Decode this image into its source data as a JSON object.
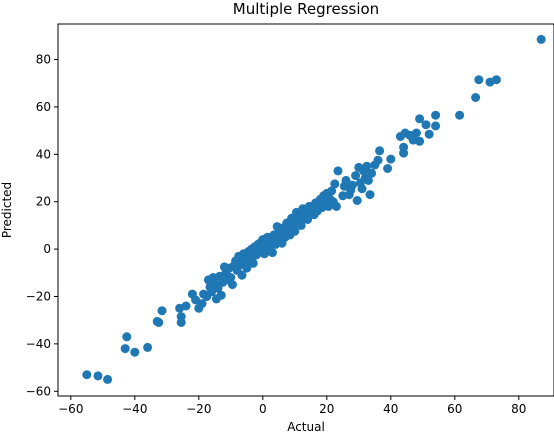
{
  "chart_data": {
    "type": "scatter",
    "title": "Multiple Regression",
    "xlabel": "Actual",
    "ylabel": "Predicted",
    "xlim": [
      -64,
      91
    ],
    "ylim": [
      -62,
      95
    ],
    "xticks": [
      -60,
      -40,
      -20,
      0,
      20,
      40,
      60,
      80
    ],
    "yticks": [
      -60,
      -40,
      -20,
      0,
      20,
      40,
      60,
      80
    ],
    "grid": false,
    "marker_color": "#1f77b4",
    "points": [
      [
        -55,
        -53
      ],
      [
        -51.5,
        -53.5
      ],
      [
        -48.5,
        -55
      ],
      [
        -43,
        -42
      ],
      [
        -42.5,
        -37
      ],
      [
        -40,
        -43.5
      ],
      [
        -36,
        -41.5
      ],
      [
        -33,
        -30.5
      ],
      [
        -32.5,
        -31
      ],
      [
        -31.5,
        -26
      ],
      [
        -26,
        -25
      ],
      [
        -25.5,
        -31
      ],
      [
        -25.5,
        -28.5
      ],
      [
        -24,
        -24
      ],
      [
        -22,
        -19
      ],
      [
        -21,
        -21.5
      ],
      [
        -20,
        -25
      ],
      [
        -19,
        -23
      ],
      [
        -18.5,
        -19
      ],
      [
        -17.5,
        -20
      ],
      [
        -17,
        -13
      ],
      [
        -16.5,
        -16
      ],
      [
        -16,
        -18
      ],
      [
        -15.5,
        -12
      ],
      [
        -15,
        -14.5
      ],
      [
        -14.5,
        -21
      ],
      [
        -14,
        -16.5
      ],
      [
        -13.5,
        -11.5
      ],
      [
        -13,
        -19.5
      ],
      [
        -12.5,
        -14
      ],
      [
        -12,
        -7.5
      ],
      [
        -11.5,
        -10
      ],
      [
        -11,
        -13
      ],
      [
        -10.5,
        -8
      ],
      [
        -10,
        -12
      ],
      [
        -9.5,
        -15
      ],
      [
        -9,
        -7
      ],
      [
        -8.5,
        -5
      ],
      [
        -8,
        -9
      ],
      [
        -7.5,
        -3
      ],
      [
        -7,
        -6.5
      ],
      [
        -6.5,
        -11
      ],
      [
        -6,
        -2
      ],
      [
        -5.5,
        -5.5
      ],
      [
        -5,
        -8
      ],
      [
        -4.5,
        -1
      ],
      [
        -4,
        -3.5
      ],
      [
        -3.5,
        0
      ],
      [
        -3,
        -6
      ],
      [
        -2.5,
        1
      ],
      [
        -2,
        -2.5
      ],
      [
        -1.5,
        2
      ],
      [
        -1,
        -1
      ],
      [
        -0.5,
        3
      ],
      [
        0,
        0
      ],
      [
        0,
        4
      ],
      [
        0.5,
        -2
      ],
      [
        1,
        2.5
      ],
      [
        1.5,
        5
      ],
      [
        2,
        1
      ],
      [
        2.5,
        3
      ],
      [
        3,
        -1.5
      ],
      [
        3.5,
        6
      ],
      [
        4,
        2
      ],
      [
        4.5,
        9.5
      ],
      [
        5,
        4.5
      ],
      [
        5.5,
        7
      ],
      [
        6,
        2.5
      ],
      [
        6.5,
        9
      ],
      [
        7,
        5
      ],
      [
        7.5,
        11
      ],
      [
        8,
        8
      ],
      [
        8.5,
        6
      ],
      [
        9,
        13
      ],
      [
        9.5,
        10
      ],
      [
        10,
        7.5
      ],
      [
        10.5,
        15.5
      ],
      [
        11,
        12
      ],
      [
        11.5,
        14
      ],
      [
        12,
        10
      ],
      [
        12.5,
        17
      ],
      [
        13,
        13
      ],
      [
        13.5,
        16
      ],
      [
        14,
        12.5
      ],
      [
        14.5,
        18
      ],
      [
        15,
        15
      ],
      [
        15.5,
        17
      ],
      [
        16,
        14.5
      ],
      [
        16.5,
        19.5
      ],
      [
        17,
        16
      ],
      [
        17.5,
        18.5
      ],
      [
        18,
        21
      ],
      [
        18.5,
        17.5
      ],
      [
        19,
        22.5
      ],
      [
        19.5,
        20
      ],
      [
        20,
        23.5
      ],
      [
        20.5,
        18
      ],
      [
        21,
        21
      ],
      [
        21.5,
        24.5
      ],
      [
        22,
        20
      ],
      [
        22.5,
        27.5
      ],
      [
        23,
        18
      ],
      [
        23.5,
        33
      ],
      [
        25,
        22.5
      ],
      [
        25.5,
        26.5
      ],
      [
        26,
        29
      ],
      [
        27,
        23
      ],
      [
        27.5,
        25
      ],
      [
        28,
        27
      ],
      [
        29,
        31
      ],
      [
        29.5,
        20.5
      ],
      [
        30,
        34.5
      ],
      [
        30.5,
        28
      ],
      [
        31,
        25.5
      ],
      [
        31.5,
        33
      ],
      [
        32,
        30
      ],
      [
        32.5,
        35
      ],
      [
        33,
        29
      ],
      [
        33.5,
        23
      ],
      [
        34,
        32
      ],
      [
        35,
        35.5
      ],
      [
        36,
        37.5
      ],
      [
        36.5,
        41.5
      ],
      [
        39,
        34
      ],
      [
        40,
        38
      ],
      [
        43,
        47.5
      ],
      [
        44,
        40.5
      ],
      [
        44,
        43
      ],
      [
        44.5,
        49
      ],
      [
        46,
        48
      ],
      [
        47,
        46
      ],
      [
        48,
        49
      ],
      [
        49,
        45.5
      ],
      [
        49,
        55
      ],
      [
        51,
        52.5
      ],
      [
        52,
        48.5
      ],
      [
        54,
        56.5
      ],
      [
        54,
        52
      ],
      [
        61.5,
        56.5
      ],
      [
        66.5,
        64
      ],
      [
        67.5,
        71.5
      ],
      [
        71,
        70.5
      ],
      [
        73,
        71.5
      ],
      [
        87,
        88.5
      ]
    ]
  }
}
